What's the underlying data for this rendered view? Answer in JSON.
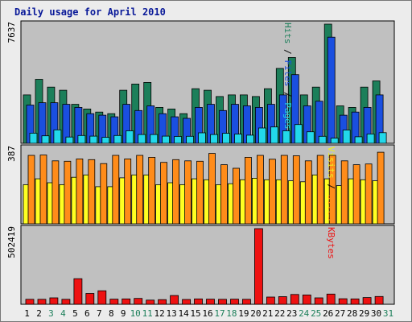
{
  "chart_data": {
    "type": "bar",
    "title": "Daily usage for April 2010",
    "categories": [
      "1",
      "2",
      "3",
      "4",
      "5",
      "6",
      "7",
      "8",
      "9",
      "10",
      "11",
      "12",
      "13",
      "14",
      "15",
      "16",
      "17",
      "18",
      "19",
      "20",
      "21",
      "22",
      "23",
      "24",
      "25",
      "26",
      "27",
      "28",
      "29",
      "30",
      "31"
    ],
    "weekend_categories": [
      "3",
      "4",
      "10",
      "11",
      "17",
      "18",
      "24",
      "25",
      "31"
    ],
    "panels": [
      {
        "name": "hits-files-pages",
        "ylabel_max": "7637",
        "ylim": [
          0,
          7637
        ],
        "side_labels": [
          "Pages",
          "Files",
          "Hits"
        ],
        "series": [
          {
            "name": "Hits",
            "color": "#1c7f5a",
            "values": [
              3100,
              4100,
              3600,
              3400,
              2500,
              2200,
              2000,
              1900,
              3400,
              3800,
              3900,
              2300,
              2200,
              1900,
              3500,
              3400,
              3000,
              3100,
              3100,
              3000,
              3500,
              4800,
              5500,
              3100,
              3600,
              7637,
              2400,
              2300,
              3600,
              4000,
              null
            ]
          },
          {
            "name": "Files",
            "color": "#1a4fe0",
            "values": [
              2450,
              2600,
              2600,
              2500,
              2300,
              1900,
              1800,
              1700,
              2500,
              2100,
              2400,
              1900,
              1700,
              1600,
              2300,
              2500,
              2100,
              2500,
              2400,
              2300,
              2500,
              3100,
              4400,
              2400,
              2700,
              6800,
              1800,
              2000,
              2300,
              3100,
              null
            ]
          },
          {
            "name": "Pages",
            "color": "#22d8ea",
            "values": [
              650,
              480,
              860,
              400,
              500,
              460,
              380,
              500,
              800,
              560,
              560,
              460,
              440,
              450,
              670,
              560,
              640,
              590,
              520,
              980,
              1050,
              800,
              1200,
              740,
              450,
              330,
              850,
              420,
              600,
              680,
              null
            ]
          }
        ]
      },
      {
        "name": "visits-sites",
        "ylabel_max": "387",
        "ylim": [
          0,
          387
        ],
        "side_labels": [
          "Sites",
          "Visits"
        ],
        "series": [
          {
            "name": "Visits",
            "color": "#ffff22",
            "values": [
              200,
              230,
              210,
              200,
              238,
              250,
              190,
              190,
              235,
              250,
              250,
              200,
              210,
              200,
              230,
              225,
              200,
              205,
              225,
              233,
              225,
              225,
              220,
              215,
              250,
              230,
              195,
              230,
              225,
              220,
              null
            ]
          },
          {
            "name": "Sites",
            "color": "#ff8c1a",
            "values": [
              350,
              352,
              322,
              320,
              332,
              328,
              308,
              350,
              332,
              350,
              340,
              314,
              328,
              322,
              320,
              360,
              302,
              284,
              340,
              350,
              330,
              350,
              348,
              322,
              350,
              350,
              322,
              302,
              306,
              366,
              null
            ]
          }
        ]
      },
      {
        "name": "kbytes",
        "ylabel_max": "502419",
        "ylim": [
          0,
          502419
        ],
        "side_labels": [
          "KBytes"
        ],
        "series": [
          {
            "name": "KBytes",
            "color": "#ee1111",
            "values": [
              33000,
              33000,
              43000,
              33000,
              170000,
              72000,
              90000,
              34000,
              36000,
              39000,
              28000,
              31000,
              58000,
              32000,
              36000,
              34000,
              33000,
              34000,
              33000,
              502419,
              48000,
              51000,
              65000,
              62000,
              43000,
              68000,
              37000,
              36000,
              45000,
              52000,
              null
            ]
          }
        ]
      }
    ]
  }
}
